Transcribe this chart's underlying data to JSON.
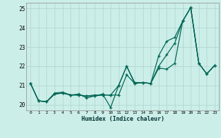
{
  "xlabel": "Humidex (Indice chaleur)",
  "background_color": "#cceee8",
  "grid_color": "#aad4ce",
  "line_color1": "#006655",
  "line_color2": "#006655",
  "line_color3": "#006655",
  "xlim": [
    -0.5,
    23.5
  ],
  "ylim": [
    19.7,
    25.3
  ],
  "yticks": [
    20,
    21,
    22,
    23,
    24,
    25
  ],
  "xticks": [
    0,
    1,
    2,
    3,
    4,
    5,
    6,
    7,
    8,
    9,
    10,
    11,
    12,
    13,
    14,
    15,
    16,
    17,
    18,
    19,
    20,
    21,
    22,
    23
  ],
  "series1_x": [
    0,
    1,
    2,
    3,
    4,
    5,
    6,
    7,
    8,
    9,
    10,
    11,
    12,
    13,
    14,
    15,
    16,
    17,
    18,
    19,
    20,
    21,
    22,
    23
  ],
  "series1_y": [
    21.1,
    20.2,
    20.15,
    20.55,
    20.6,
    20.5,
    20.5,
    20.45,
    20.45,
    20.5,
    20.5,
    20.5,
    21.55,
    21.1,
    21.15,
    21.1,
    21.9,
    21.85,
    22.15,
    24.35,
    25.05,
    22.15,
    21.6,
    22.05
  ],
  "series2_x": [
    0,
    1,
    2,
    3,
    4,
    5,
    6,
    7,
    8,
    9,
    10,
    11,
    12,
    13,
    14,
    15,
    16,
    17,
    18,
    19,
    20,
    21,
    22,
    23
  ],
  "series2_y": [
    21.1,
    20.2,
    20.15,
    20.6,
    20.65,
    20.5,
    20.55,
    20.35,
    20.45,
    20.55,
    19.85,
    21.0,
    22.0,
    21.15,
    21.15,
    21.1,
    22.55,
    23.3,
    23.5,
    24.35,
    25.05,
    22.15,
    21.6,
    22.05
  ],
  "series3_x": [
    0,
    1,
    2,
    3,
    4,
    5,
    6,
    7,
    8,
    9,
    10,
    11,
    12,
    13,
    14,
    15,
    16,
    17,
    18,
    19,
    20,
    21,
    22,
    23
  ],
  "series3_y": [
    21.1,
    20.2,
    20.15,
    20.55,
    20.6,
    20.5,
    20.5,
    20.45,
    20.5,
    20.5,
    20.5,
    21.0,
    22.0,
    21.1,
    21.15,
    21.1,
    22.0,
    22.6,
    23.2,
    24.35,
    25.05,
    22.15,
    21.6,
    22.05
  ]
}
